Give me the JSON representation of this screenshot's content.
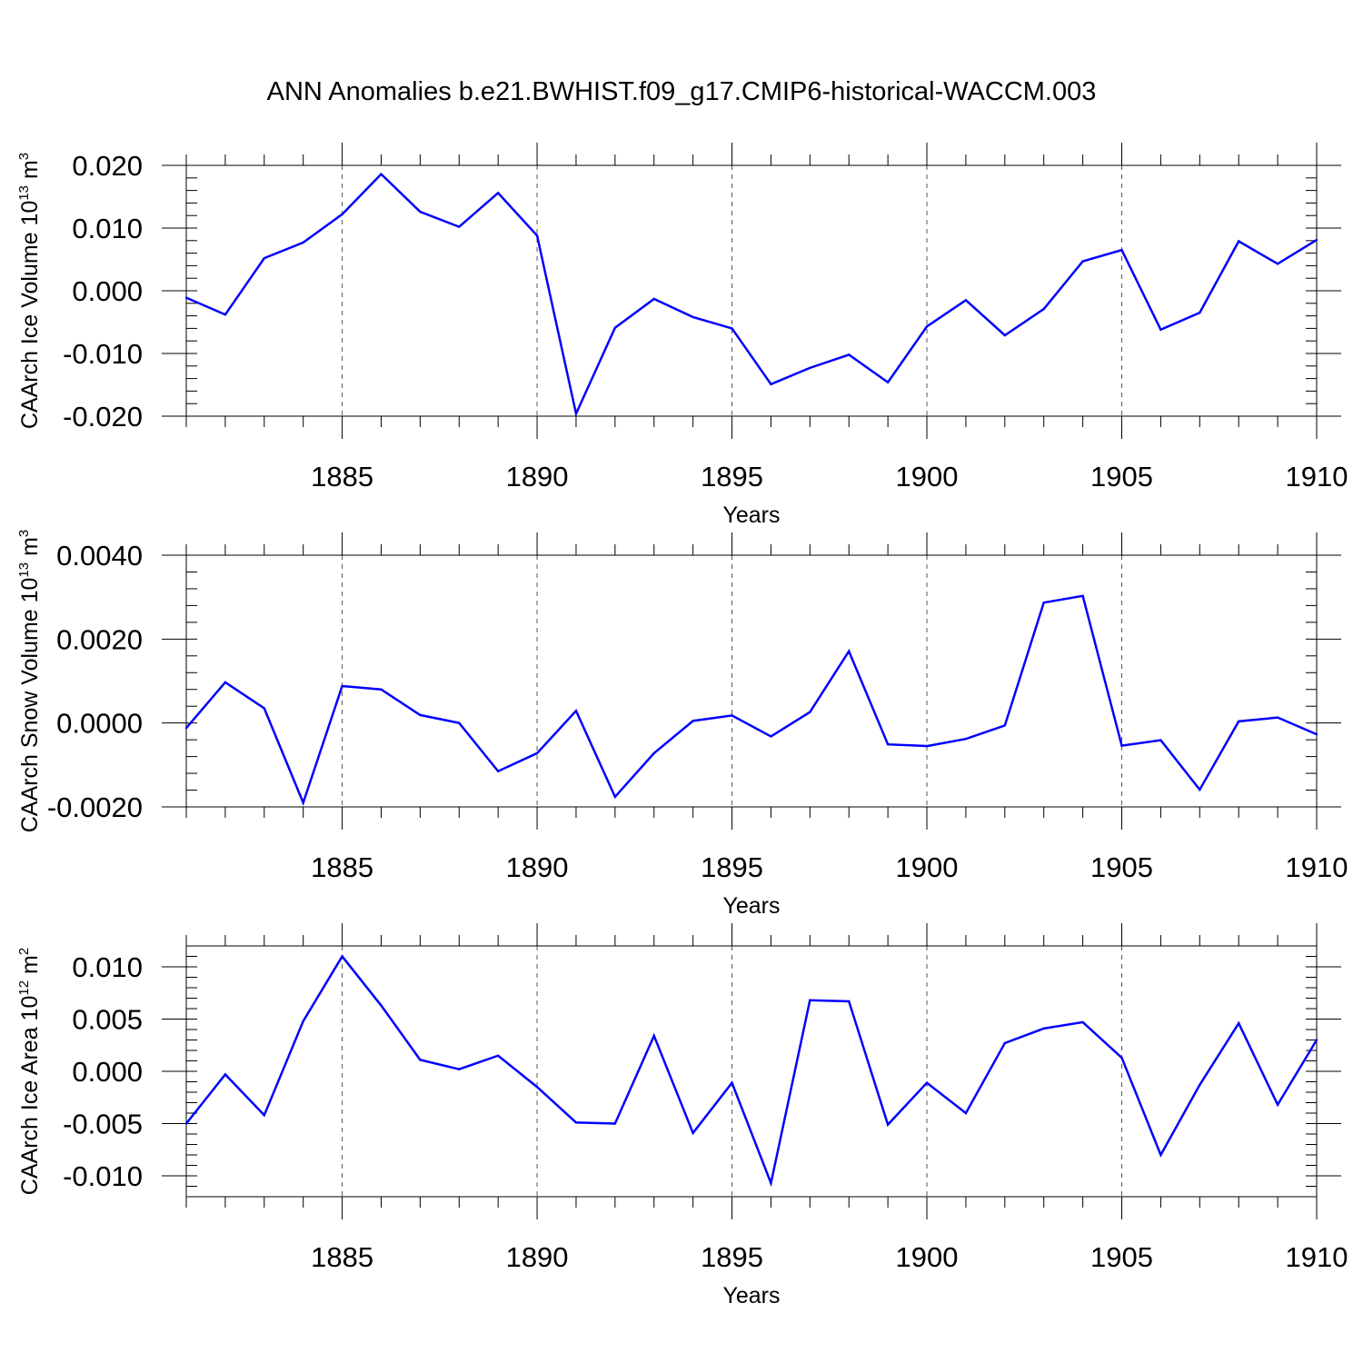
{
  "title": "ANN Anomalies b.e21.BWHIST.f09_g17.CMIP6-historical-WACCM.003",
  "line_color": "#0000ff",
  "chart_data": [
    {
      "type": "line",
      "ylabel": {
        "main": "CAArch Ice Volume 10",
        "exp": "13",
        "unit": " m",
        "unit_exp": "3"
      },
      "xlabel": "Years",
      "xlim": [
        1881,
        1910
      ],
      "ylim": [
        -0.02,
        0.02
      ],
      "xticks": [
        "1885",
        "1890",
        "1895",
        "1900",
        "1905",
        "1910"
      ],
      "yticks": [
        {
          "value": 0.02,
          "label": "0.020"
        },
        {
          "value": 0.01,
          "label": "0.010"
        },
        {
          "value": 0.0,
          "label": "0.000"
        },
        {
          "value": -0.01,
          "label": "-0.010"
        },
        {
          "value": -0.02,
          "label": "-0.020"
        }
      ],
      "x": [
        1881,
        1882,
        1883,
        1884,
        1885,
        1886,
        1887,
        1888,
        1889,
        1890,
        1891,
        1892,
        1893,
        1894,
        1895,
        1896,
        1897,
        1898,
        1899,
        1900,
        1901,
        1902,
        1903,
        1904,
        1905,
        1906,
        1907,
        1908,
        1909,
        1910
      ],
      "values": [
        -0.0011,
        -0.0038,
        0.0052,
        0.0077,
        0.0122,
        0.0186,
        0.0126,
        0.0102,
        0.0156,
        0.0088,
        -0.0196,
        -0.0059,
        -0.0013,
        -0.0042,
        -0.006,
        -0.0149,
        -0.0123,
        -0.0102,
        -0.0146,
        -0.0057,
        -0.0015,
        -0.0071,
        -0.0029,
        0.0047,
        0.0065,
        -0.0062,
        -0.0035,
        0.0079,
        0.0043,
        0.0081
      ]
    },
    {
      "type": "line",
      "ylabel": {
        "main": "CAArch Snow Volume 10",
        "exp": "13",
        "unit": " m",
        "unit_exp": "3"
      },
      "xlabel": "Years",
      "xlim": [
        1881,
        1910
      ],
      "ylim": [
        -0.002,
        0.004
      ],
      "xticks": [
        "1885",
        "1890",
        "1895",
        "1900",
        "1905",
        "1910"
      ],
      "yticks": [
        {
          "value": 0.004,
          "label": "0.0040"
        },
        {
          "value": 0.002,
          "label": "0.0020"
        },
        {
          "value": 0.0,
          "label": "0.0000"
        },
        {
          "value": -0.002,
          "label": "-0.0020"
        }
      ],
      "x": [
        1881,
        1882,
        1883,
        1884,
        1885,
        1886,
        1887,
        1888,
        1889,
        1890,
        1891,
        1892,
        1893,
        1894,
        1895,
        1896,
        1897,
        1898,
        1899,
        1900,
        1901,
        1902,
        1903,
        1904,
        1905,
        1906,
        1907,
        1908,
        1909,
        1910
      ],
      "values": [
        -0.00012,
        0.00097,
        0.00035,
        -0.0019,
        0.00088,
        0.0008,
        0.00019,
        0.0,
        -0.00115,
        -0.00072,
        0.00029,
        -0.00176,
        -0.00072,
        5e-05,
        0.00018,
        -0.00032,
        0.00026,
        0.00171,
        -0.00051,
        -0.00055,
        -0.00038,
        -6e-05,
        0.00287,
        0.00303,
        -0.00054,
        -0.00041,
        -0.00159,
        4e-05,
        0.00013,
        -0.00027
      ]
    },
    {
      "type": "line",
      "ylabel": {
        "main": "CAArch Ice Area 10",
        "exp": "12",
        "unit": " m",
        "unit_exp": "2"
      },
      "xlabel": "Years",
      "xlim": [
        1881,
        1910
      ],
      "ylim": [
        -0.012,
        0.012
      ],
      "xticks": [
        "1885",
        "1890",
        "1895",
        "1900",
        "1905",
        "1910"
      ],
      "yticks": [
        {
          "value": 0.01,
          "label": "0.010"
        },
        {
          "value": 0.005,
          "label": "0.005"
        },
        {
          "value": 0.0,
          "label": "0.000"
        },
        {
          "value": -0.005,
          "label": "-0.005"
        },
        {
          "value": -0.01,
          "label": "-0.010"
        }
      ],
      "x": [
        1881,
        1882,
        1883,
        1884,
        1885,
        1886,
        1887,
        1888,
        1889,
        1890,
        1891,
        1892,
        1893,
        1894,
        1895,
        1896,
        1897,
        1898,
        1899,
        1900,
        1901,
        1902,
        1903,
        1904,
        1905,
        1906,
        1907,
        1908,
        1909,
        1910
      ],
      "values": [
        -0.005,
        -0.0003,
        -0.0042,
        0.0048,
        0.011,
        0.0063,
        0.0011,
        0.0002,
        0.0015,
        -0.0015,
        -0.0049,
        -0.005,
        0.0034,
        -0.0059,
        -0.0011,
        -0.0107,
        0.0068,
        0.0067,
        -0.0051,
        -0.0011,
        -0.004,
        0.0027,
        0.0041,
        0.0047,
        0.0013,
        -0.008,
        -0.0013,
        0.0046,
        -0.0032,
        0.003
      ]
    }
  ]
}
